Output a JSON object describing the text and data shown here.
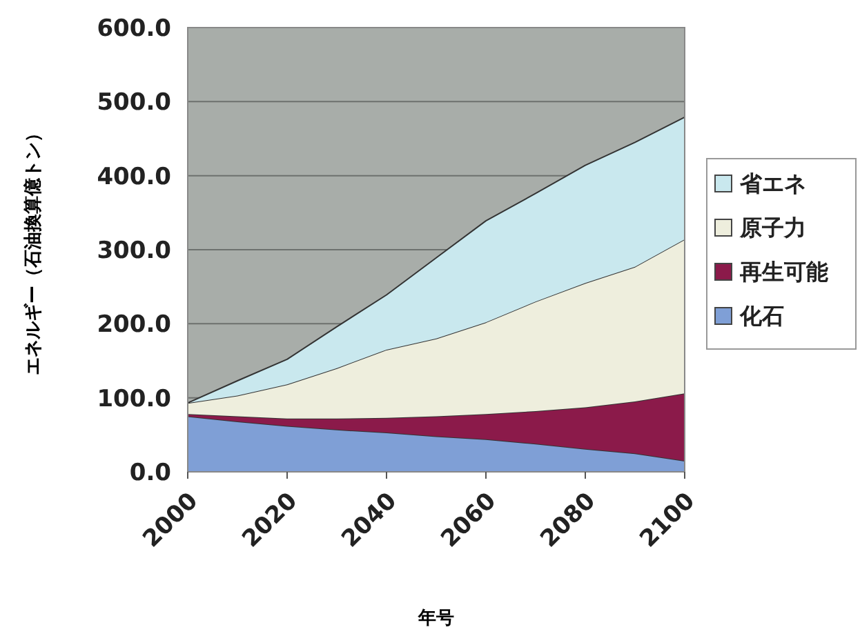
{
  "chart_data": {
    "type": "area",
    "stacked": true,
    "xlabel": "年号",
    "ylabel": "エネルギー（石油換算億トン）",
    "x": [
      2000,
      2010,
      2020,
      2030,
      2040,
      2050,
      2060,
      2070,
      2080,
      2090,
      2100
    ],
    "series": [
      {
        "name": "化石",
        "color": "#7f9fd6",
        "values": [
          75,
          68,
          62,
          57,
          53,
          48,
          44,
          38,
          31,
          25,
          15
        ]
      },
      {
        "name": "再生可能",
        "color": "#8b1a4a",
        "values": [
          3,
          7,
          10,
          15,
          20,
          27,
          34,
          44,
          56,
          70,
          91
        ]
      },
      {
        "name": "原子力",
        "color": "#eeeedd",
        "values": [
          15,
          28,
          46,
          68,
          92,
          105,
          124,
          148,
          168,
          182,
          208
        ]
      },
      {
        "name": "省エネ",
        "color": "#c9e8ee",
        "values": [
          0,
          20,
          34,
          56,
          74,
          109,
          137,
          146,
          159,
          168,
          165
        ]
      }
    ],
    "xlim": [
      2000,
      2100
    ],
    "xticks": [
      2000,
      2020,
      2040,
      2060,
      2080,
      2100
    ],
    "ylim": [
      0,
      600
    ],
    "yticks": [
      {
        "value": 0,
        "label": "0.0"
      },
      {
        "value": 100,
        "label": "100.0"
      },
      {
        "value": 200,
        "label": "200.0"
      },
      {
        "value": 300,
        "label": "300.0"
      },
      {
        "value": 400,
        "label": "400.0"
      },
      {
        "value": 500,
        "label": "500.0"
      },
      {
        "value": 600,
        "label": "600.0"
      }
    ],
    "grid": "y",
    "legend": "right"
  }
}
